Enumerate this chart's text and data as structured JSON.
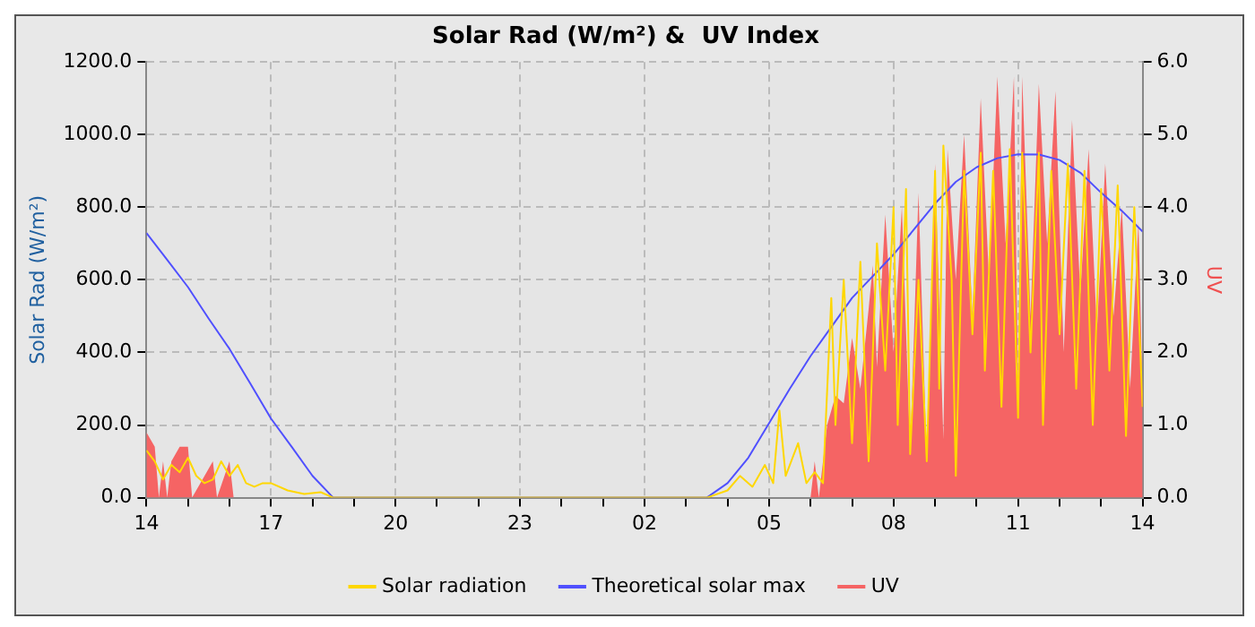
{
  "chart_data": {
    "type": "line",
    "title": "Solar Rad (W/m²) &  UV Index",
    "ylabel": "Solar Rad (W/m²)",
    "y2label": "UV",
    "legend": "bottom",
    "grid": true,
    "marker": "none",
    "xlim": [
      "--01-01T14:00",
      "--01-02T14:00"
    ],
    "ylim": [
      0,
      1200
    ],
    "y2lim": [
      0,
      6
    ],
    "xticks": [
      {
        "value": "--01-01T14:00",
        "label": "14"
      },
      {
        "value": "--01-01T15:00",
        "label": null
      },
      {
        "value": "--01-01T16:00",
        "label": null
      },
      {
        "value": "--01-01T17:00",
        "label": "17"
      },
      {
        "value": "--01-01T18:00",
        "label": null
      },
      {
        "value": "--01-01T19:00",
        "label": null
      },
      {
        "value": "--01-01T20:00",
        "label": "20"
      },
      {
        "value": "--01-01T21:00",
        "label": null
      },
      {
        "value": "--01-01T22:00",
        "label": null
      },
      {
        "value": "--01-01T23:00",
        "label": "23"
      },
      {
        "value": "--01-02T00:00",
        "label": null
      },
      {
        "value": "--01-02T01:00",
        "label": null
      },
      {
        "value": "--01-02T02:00",
        "label": "02"
      },
      {
        "value": "--01-02T03:00",
        "label": null
      },
      {
        "value": "--01-02T04:00",
        "label": null
      },
      {
        "value": "--01-02T05:00",
        "label": "05"
      },
      {
        "value": "--01-02T06:00",
        "label": null
      },
      {
        "value": "--01-02T07:00",
        "label": null
      },
      {
        "value": "--01-02T08:00",
        "label": "08"
      },
      {
        "value": "--01-02T09:00",
        "label": null
      },
      {
        "value": "--01-02T10:00",
        "label": null
      },
      {
        "value": "--01-02T11:00",
        "label": "11"
      },
      {
        "value": "--01-02T12:00",
        "label": null
      },
      {
        "value": "--01-02T13:00",
        "label": null
      },
      {
        "value": "--01-02T14:00",
        "label": "14"
      }
    ],
    "yticks": [
      {
        "value": 0,
        "label": "0.0"
      },
      {
        "value": 200,
        "label": "200.0"
      },
      {
        "value": 400,
        "label": "400.0"
      },
      {
        "value": 600,
        "label": "600.0"
      },
      {
        "value": 800,
        "label": "800.0"
      },
      {
        "value": 1000,
        "label": "1000.0"
      },
      {
        "value": 1200,
        "label": "1200.0"
      }
    ],
    "y2ticks": [
      {
        "value": 0,
        "label": "0.0"
      },
      {
        "value": 1,
        "label": "1.0"
      },
      {
        "value": 2,
        "label": "2.0"
      },
      {
        "value": 3,
        "label": "3.0"
      },
      {
        "value": 4,
        "label": "4.0"
      },
      {
        "value": 5,
        "label": "5.0"
      },
      {
        "value": 6,
        "label": "6.0"
      }
    ],
    "series": [
      {
        "name": "Solar radiation",
        "type": "line",
        "color": "#ffd700",
        "x": [
          "--01-01T14:00",
          "--01-01T14:12",
          "--01-01T14:24",
          "--01-01T14:36",
          "--01-01T14:48",
          "--01-01T15:00",
          "--01-01T15:12",
          "--01-01T15:24",
          "--01-01T15:36",
          "--01-01T15:48",
          "--01-01T16:00",
          "--01-01T16:12",
          "--01-01T16:24",
          "--01-01T16:36",
          "--01-01T16:48",
          "--01-01T17:00",
          "--01-01T17:24",
          "--01-01T17:48",
          "--01-01T18:12",
          "--01-01T18:30",
          "--01-02T03:30",
          "--01-02T04:00",
          "--01-02T04:18",
          "--01-02T04:36",
          "--01-02T04:54",
          "--01-02T05:06",
          "--01-02T05:15",
          "--01-02T05:24",
          "--01-02T05:42",
          "--01-02T05:54",
          "--01-02T06:06",
          "--01-02T06:18",
          "--01-02T06:30",
          "--01-02T06:36",
          "--01-02T06:48",
          "--01-02T07:00",
          "--01-02T07:12",
          "--01-02T07:24",
          "--01-02T07:36",
          "--01-02T07:48",
          "--01-02T08:00",
          "--01-02T08:06",
          "--01-02T08:18",
          "--01-02T08:24",
          "--01-02T08:36",
          "--01-02T08:48",
          "--01-02T09:00",
          "--01-02T09:06",
          "--01-02T09:12",
          "--01-02T09:24",
          "--01-02T09:30",
          "--01-02T09:42",
          "--01-02T09:54",
          "--01-02T10:06",
          "--01-02T10:12",
          "--01-02T10:24",
          "--01-02T10:36",
          "--01-02T10:48",
          "--01-02T11:00",
          "--01-02T11:06",
          "--01-02T11:18",
          "--01-02T11:30",
          "--01-02T11:36",
          "--01-02T11:48",
          "--01-02T12:00",
          "--01-02T12:12",
          "--01-02T12:24",
          "--01-02T12:36",
          "--01-02T12:48",
          "--01-02T13:00",
          "--01-02T13:12",
          "--01-02T13:24",
          "--01-02T13:36",
          "--01-02T13:48",
          "--01-02T14:00"
        ],
        "values": [
          130,
          100,
          50,
          90,
          70,
          110,
          60,
          40,
          50,
          100,
          60,
          90,
          40,
          30,
          40,
          40,
          20,
          10,
          15,
          0,
          0,
          20,
          60,
          30,
          90,
          40,
          240,
          60,
          150,
          40,
          70,
          40,
          550,
          200,
          600,
          150,
          650,
          100,
          700,
          350,
          800,
          200,
          850,
          120,
          600,
          100,
          900,
          300,
          970,
          600,
          60,
          900,
          450,
          950,
          350,
          900,
          250,
          960,
          220,
          950,
          400,
          950,
          200,
          900,
          450,
          920,
          300,
          900,
          200,
          850,
          350,
          860,
          170,
          800,
          250
        ]
      },
      {
        "name": "Theoretical solar max",
        "type": "line",
        "color": "#5050ff",
        "x": [
          "--01-01T14:00",
          "--01-01T14:30",
          "--01-01T15:00",
          "--01-01T15:30",
          "--01-01T16:00",
          "--01-01T16:30",
          "--01-01T17:00",
          "--01-01T17:30",
          "--01-01T18:00",
          "--01-01T18:30",
          "--01-02T03:30",
          "--01-02T04:00",
          "--01-02T04:30",
          "--01-02T05:00",
          "--01-02T05:30",
          "--01-02T06:00",
          "--01-02T06:30",
          "--01-02T07:00",
          "--01-02T07:30",
          "--01-02T08:00",
          "--01-02T08:30",
          "--01-02T09:00",
          "--01-02T09:30",
          "--01-02T10:00",
          "--01-02T10:30",
          "--01-02T11:00",
          "--01-02T11:30",
          "--01-02T12:00",
          "--01-02T12:30",
          "--01-02T13:00",
          "--01-02T13:30",
          "--01-02T14:00"
        ],
        "values": [
          729,
          655,
          580,
          493,
          410,
          315,
          218,
          140,
          60,
          0,
          0,
          40,
          110,
          205,
          300,
          390,
          470,
          550,
          610,
          670,
          740,
          810,
          870,
          910,
          935,
          946,
          945,
          930,
          895,
          840,
          790,
          733
        ]
      },
      {
        "name": "UV",
        "type": "area",
        "axis": "y2",
        "color": "#f56464",
        "x": [
          "--01-01T14:00",
          "--01-01T14:06",
          "--01-01T14:12",
          "--01-01T14:18",
          "--01-01T14:24",
          "--01-01T14:30",
          "--01-01T14:36",
          "--01-01T14:48",
          "--01-01T15:00",
          "--01-01T15:06",
          "--01-01T15:36",
          "--01-01T15:42",
          "--01-01T16:00",
          "--01-01T16:06",
          "--01-02T06:00",
          "--01-02T06:06",
          "--01-02T06:12",
          "--01-02T06:24",
          "--01-02T06:36",
          "--01-02T06:48",
          "--01-02T07:00",
          "--01-02T07:12",
          "--01-02T07:24",
          "--01-02T07:30",
          "--01-02T07:36",
          "--01-02T07:48",
          "--01-02T08:00",
          "--01-02T08:12",
          "--01-02T08:24",
          "--01-02T08:36",
          "--01-02T08:48",
          "--01-02T09:00",
          "--01-02T09:12",
          "--01-02T09:18",
          "--01-02T09:30",
          "--01-02T09:42",
          "--01-02T09:54",
          "--01-02T10:06",
          "--01-02T10:18",
          "--01-02T10:30",
          "--01-02T10:42",
          "--01-02T10:54",
          "--01-02T11:00",
          "--01-02T11:06",
          "--01-02T11:18",
          "--01-02T11:30",
          "--01-02T11:42",
          "--01-02T11:54",
          "--01-02T12:06",
          "--01-02T12:18",
          "--01-02T12:30",
          "--01-02T12:42",
          "--01-02T12:54",
          "--01-02T13:06",
          "--01-02T13:18",
          "--01-02T13:30",
          "--01-02T13:42",
          "--01-02T13:54",
          "--01-02T14:00"
        ],
        "values": [
          0.9,
          0.8,
          0.7,
          0,
          0.5,
          0,
          0.5,
          0.7,
          0.7,
          0,
          0.5,
          0,
          0.5,
          0,
          0,
          0.5,
          0,
          1.0,
          1.4,
          1.3,
          2.2,
          1.5,
          2.6,
          3.2,
          1.8,
          3.9,
          2.0,
          4.0,
          0.6,
          4.2,
          0.5,
          4.6,
          0.8,
          4.8,
          3.0,
          5.0,
          2.5,
          5.5,
          3.0,
          5.8,
          3.5,
          5.8,
          1.5,
          5.8,
          2.5,
          5.7,
          3.5,
          5.6,
          2.0,
          5.2,
          2.8,
          4.8,
          2.3,
          4.6,
          2.5,
          4.0,
          1.5,
          3.8,
          1.4
        ]
      }
    ]
  }
}
